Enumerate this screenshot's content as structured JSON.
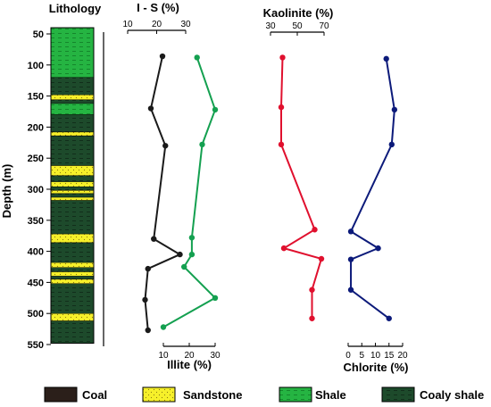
{
  "chart_data": {
    "type": "line",
    "orientation": "vertical-profile",
    "depth_axis": {
      "label": "Depth (m)",
      "range": [
        40,
        550
      ],
      "ticks": [
        50,
        100,
        150,
        200,
        250,
        300,
        350,
        400,
        450,
        500,
        550
      ]
    },
    "lithology": {
      "title": "Lithology",
      "units": [
        {
          "top": 40,
          "bottom": 120,
          "type": "shale"
        },
        {
          "top": 120,
          "bottom": 148,
          "type": "coaly_shale"
        },
        {
          "top": 148,
          "bottom": 156,
          "type": "sandstone"
        },
        {
          "top": 156,
          "bottom": 162,
          "type": "coaly_shale"
        },
        {
          "top": 162,
          "bottom": 180,
          "type": "shale"
        },
        {
          "top": 180,
          "bottom": 208,
          "type": "coaly_shale"
        },
        {
          "top": 208,
          "bottom": 214,
          "type": "sandstone"
        },
        {
          "top": 214,
          "bottom": 262,
          "type": "coaly_shale"
        },
        {
          "top": 262,
          "bottom": 278,
          "type": "sandstone"
        },
        {
          "top": 278,
          "bottom": 288,
          "type": "coaly_shale"
        },
        {
          "top": 288,
          "bottom": 296,
          "type": "sandstone"
        },
        {
          "top": 296,
          "bottom": 302,
          "type": "coaly_shale"
        },
        {
          "top": 302,
          "bottom": 307,
          "type": "sandstone"
        },
        {
          "top": 307,
          "bottom": 313,
          "type": "coaly_shale"
        },
        {
          "top": 313,
          "bottom": 318,
          "type": "sandstone"
        },
        {
          "top": 318,
          "bottom": 372,
          "type": "coaly_shale"
        },
        {
          "top": 372,
          "bottom": 386,
          "type": "sandstone"
        },
        {
          "top": 386,
          "bottom": 418,
          "type": "coaly_shale"
        },
        {
          "top": 418,
          "bottom": 426,
          "type": "sandstone"
        },
        {
          "top": 426,
          "bottom": 433,
          "type": "coaly_shale"
        },
        {
          "top": 433,
          "bottom": 440,
          "type": "sandstone"
        },
        {
          "top": 440,
          "bottom": 445,
          "type": "coaly_shale"
        },
        {
          "top": 445,
          "bottom": 452,
          "type": "sandstone"
        },
        {
          "top": 452,
          "bottom": 500,
          "type": "coaly_shale"
        },
        {
          "top": 500,
          "bottom": 512,
          "type": "sandstone"
        },
        {
          "top": 512,
          "bottom": 548,
          "type": "coaly_shale"
        }
      ]
    },
    "series": [
      {
        "name": "I - S (%)",
        "color": "#1a1a1a",
        "axis": {
          "label": "I - S (%)",
          "position": "top",
          "range": [
            10,
            30
          ],
          "ticks": [
            10,
            20,
            30
          ]
        },
        "points": [
          [
            86,
            22
          ],
          [
            170,
            18
          ],
          [
            230,
            23
          ],
          [
            380,
            19
          ],
          [
            405,
            28
          ],
          [
            428,
            17
          ],
          [
            478,
            16
          ],
          [
            527,
            17
          ]
        ]
      },
      {
        "name": "Illite (%)",
        "color": "#14a050",
        "axis": {
          "label": "Illite (%)",
          "position": "bottom",
          "range": [
            10,
            30
          ],
          "ticks": [
            10,
            20,
            30
          ]
        },
        "points": [
          [
            88,
            23
          ],
          [
            172,
            30
          ],
          [
            228,
            25
          ],
          [
            378,
            21
          ],
          [
            405,
            21
          ],
          [
            425,
            18
          ],
          [
            475,
            30
          ],
          [
            522,
            10
          ]
        ]
      },
      {
        "name": "Kaolinite (%)",
        "color": "#e0102e",
        "axis": {
          "label": "Kaolinite (%)",
          "position": "top",
          "range": [
            30,
            70
          ],
          "ticks": [
            30,
            50,
            70
          ]
        },
        "points": [
          [
            88,
            39
          ],
          [
            168,
            38
          ],
          [
            228,
            38
          ],
          [
            365,
            63
          ],
          [
            395,
            40
          ],
          [
            412,
            68
          ],
          [
            462,
            61
          ],
          [
            508,
            61
          ]
        ]
      },
      {
        "name": "Chlorite (%)",
        "color": "#0c1a7a",
        "axis": {
          "label": "Chlorite (%)",
          "position": "bottom",
          "range": [
            0,
            20
          ],
          "ticks": [
            0,
            5,
            10,
            15,
            20
          ]
        },
        "points": [
          [
            90,
            14
          ],
          [
            172,
            17
          ],
          [
            228,
            16
          ],
          [
            368,
            1
          ],
          [
            395,
            11
          ],
          [
            413,
            1
          ],
          [
            462,
            1
          ],
          [
            508,
            15
          ]
        ]
      }
    ],
    "legend": {
      "placement": "bottom",
      "items": [
        {
          "label": "Coal",
          "type": "coal"
        },
        {
          "label": "Sandstone",
          "type": "sandstone"
        },
        {
          "label": "Shale",
          "type": "shale"
        },
        {
          "label": "Coaly shale",
          "type": "coaly_shale"
        }
      ]
    }
  },
  "colors": {
    "coal": "#2b1f1a",
    "sandstone": "#f6f02a",
    "shale": "#25b442",
    "coaly_shale": "#1d4a2b"
  }
}
